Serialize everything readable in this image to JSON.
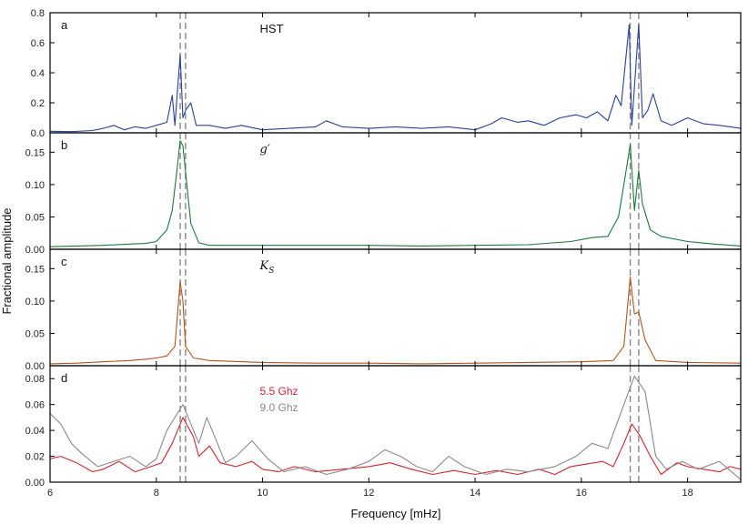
{
  "chart_data": {
    "type": "line",
    "xlabel": "Frequency [mHz]",
    "ylabel": "Fractional amplitude",
    "xlim": [
      6,
      19
    ],
    "x_ticks": [
      6,
      8,
      10,
      12,
      14,
      16,
      18
    ],
    "reference_lines_x": [
      8.45,
      8.55,
      16.92,
      17.08
    ],
    "reference_line_color": "#888888",
    "panels": [
      {
        "letter": "a",
        "label": "HST",
        "label_style": "text",
        "ylim": [
          0,
          0.8
        ],
        "y_ticks": [
          0.0,
          0.2,
          0.4,
          0.6,
          0.8
        ],
        "y_tick_labels": [
          "0.0",
          "0.2",
          "0.4",
          "0.6",
          "0.8"
        ],
        "series": [
          {
            "color": "#2a3f9c",
            "points": [
              [
                6.0,
                0.01
              ],
              [
                6.4,
                0.008
              ],
              [
                6.8,
                0.015
              ],
              [
                7.0,
                0.03
              ],
              [
                7.2,
                0.05
              ],
              [
                7.4,
                0.02
              ],
              [
                7.6,
                0.04
              ],
              [
                7.8,
                0.03
              ],
              [
                8.0,
                0.05
              ],
              [
                8.2,
                0.07
              ],
              [
                8.3,
                0.25
              ],
              [
                8.35,
                0.05
              ],
              [
                8.45,
                0.52
              ],
              [
                8.5,
                0.1
              ],
              [
                8.55,
                0.15
              ],
              [
                8.65,
                0.2
              ],
              [
                8.75,
                0.05
              ],
              [
                9.0,
                0.05
              ],
              [
                9.3,
                0.03
              ],
              [
                9.6,
                0.05
              ],
              [
                10.0,
                0.02
              ],
              [
                10.5,
                0.03
              ],
              [
                11.0,
                0.04
              ],
              [
                11.2,
                0.08
              ],
              [
                11.5,
                0.04
              ],
              [
                12.0,
                0.03
              ],
              [
                12.5,
                0.04
              ],
              [
                13.0,
                0.03
              ],
              [
                13.5,
                0.04
              ],
              [
                14.0,
                0.02
              ],
              [
                14.3,
                0.06
              ],
              [
                14.5,
                0.1
              ],
              [
                14.8,
                0.07
              ],
              [
                15.0,
                0.08
              ],
              [
                15.3,
                0.05
              ],
              [
                15.6,
                0.1
              ],
              [
                15.9,
                0.12
              ],
              [
                16.1,
                0.1
              ],
              [
                16.3,
                0.14
              ],
              [
                16.5,
                0.08
              ],
              [
                16.65,
                0.25
              ],
              [
                16.75,
                0.18
              ],
              [
                16.9,
                0.72
              ],
              [
                16.95,
                0.05
              ],
              [
                17.08,
                0.72
              ],
              [
                17.15,
                0.1
              ],
              [
                17.25,
                0.15
              ],
              [
                17.35,
                0.26
              ],
              [
                17.5,
                0.08
              ],
              [
                17.7,
                0.05
              ],
              [
                18.0,
                0.1
              ],
              [
                18.3,
                0.06
              ],
              [
                18.6,
                0.05
              ],
              [
                19.0,
                0.03
              ]
            ]
          }
        ]
      },
      {
        "letter": "b",
        "label": "g′",
        "label_style": "math",
        "ylim": [
          0,
          0.18
        ],
        "y_ticks": [
          0.0,
          0.05,
          0.1,
          0.15
        ],
        "y_tick_labels": [
          "0.00",
          "0.05",
          "0.10",
          "0.15"
        ],
        "series": [
          {
            "color": "#1a7a3a",
            "points": [
              [
                6.0,
                0.004
              ],
              [
                6.5,
                0.005
              ],
              [
                7.0,
                0.006
              ],
              [
                7.5,
                0.008
              ],
              [
                7.8,
                0.009
              ],
              [
                8.0,
                0.012
              ],
              [
                8.2,
                0.03
              ],
              [
                8.3,
                0.06
              ],
              [
                8.4,
                0.13
              ],
              [
                8.45,
                0.168
              ],
              [
                8.5,
                0.16
              ],
              [
                8.55,
                0.12
              ],
              [
                8.65,
                0.04
              ],
              [
                8.8,
                0.01
              ],
              [
                9.0,
                0.006
              ],
              [
                10.0,
                0.006
              ],
              [
                11.0,
                0.006
              ],
              [
                12.0,
                0.006
              ],
              [
                13.0,
                0.005
              ],
              [
                14.0,
                0.006
              ],
              [
                15.0,
                0.007
              ],
              [
                15.8,
                0.012
              ],
              [
                16.2,
                0.018
              ],
              [
                16.5,
                0.02
              ],
              [
                16.7,
                0.05
              ],
              [
                16.8,
                0.1
              ],
              [
                16.92,
                0.162
              ],
              [
                17.0,
                0.06
              ],
              [
                17.08,
                0.122
              ],
              [
                17.15,
                0.07
              ],
              [
                17.3,
                0.03
              ],
              [
                17.5,
                0.02
              ],
              [
                18.0,
                0.012
              ],
              [
                18.5,
                0.008
              ],
              [
                19.0,
                0.005
              ]
            ]
          }
        ]
      },
      {
        "letter": "c",
        "label": "K",
        "label_sub": "S",
        "label_style": "math",
        "ylim": [
          0,
          0.18
        ],
        "y_ticks": [
          0.0,
          0.05,
          0.1,
          0.15
        ],
        "y_tick_labels": [
          "0.00",
          "0.05",
          "0.10",
          "0.15"
        ],
        "series": [
          {
            "color": "#b5521d",
            "points": [
              [
                6.0,
                0.003
              ],
              [
                6.5,
                0.004
              ],
              [
                7.0,
                0.006
              ],
              [
                7.5,
                0.008
              ],
              [
                7.8,
                0.01
              ],
              [
                8.0,
                0.012
              ],
              [
                8.2,
                0.015
              ],
              [
                8.35,
                0.03
              ],
              [
                8.45,
                0.13
              ],
              [
                8.5,
                0.1
              ],
              [
                8.55,
                0.03
              ],
              [
                8.7,
                0.012
              ],
              [
                9.0,
                0.008
              ],
              [
                10.0,
                0.005
              ],
              [
                11.0,
                0.004
              ],
              [
                12.0,
                0.004
              ],
              [
                13.0,
                0.003
              ],
              [
                14.0,
                0.004
              ],
              [
                15.0,
                0.005
              ],
              [
                16.0,
                0.006
              ],
              [
                16.6,
                0.008
              ],
              [
                16.8,
                0.03
              ],
              [
                16.92,
                0.137
              ],
              [
                17.0,
                0.08
              ],
              [
                17.08,
                0.083
              ],
              [
                17.2,
                0.04
              ],
              [
                17.4,
                0.008
              ],
              [
                18.0,
                0.005
              ],
              [
                19.0,
                0.004
              ]
            ]
          }
        ]
      },
      {
        "letter": "d",
        "ylim": [
          0,
          0.09
        ],
        "y_ticks": [
          0.0,
          0.02,
          0.04,
          0.06,
          0.08
        ],
        "y_tick_labels": [
          "0.00",
          "0.02",
          "0.04",
          "0.06",
          "0.08"
        ],
        "legend": [
          {
            "name": "5.5 Ghz",
            "color": "#d7232e"
          },
          {
            "name": "9.0 Ghz",
            "color": "#8a8a8a"
          }
        ],
        "series": [
          {
            "name": "5.5 Ghz",
            "color": "#d7232e",
            "points": [
              [
                6.0,
                0.018
              ],
              [
                6.2,
                0.02
              ],
              [
                6.5,
                0.015
              ],
              [
                6.8,
                0.008
              ],
              [
                7.0,
                0.01
              ],
              [
                7.3,
                0.016
              ],
              [
                7.6,
                0.008
              ],
              [
                7.9,
                0.012
              ],
              [
                8.1,
                0.015
              ],
              [
                8.3,
                0.03
              ],
              [
                8.5,
                0.05
              ],
              [
                8.7,
                0.035
              ],
              [
                8.8,
                0.02
              ],
              [
                9.0,
                0.028
              ],
              [
                9.2,
                0.015
              ],
              [
                9.5,
                0.012
              ],
              [
                9.8,
                0.016
              ],
              [
                10.0,
                0.01
              ],
              [
                10.3,
                0.008
              ],
              [
                10.6,
                0.012
              ],
              [
                11.0,
                0.008
              ],
              [
                11.5,
                0.01
              ],
              [
                12.0,
                0.012
              ],
              [
                12.4,
                0.015
              ],
              [
                12.8,
                0.01
              ],
              [
                13.2,
                0.006
              ],
              [
                13.6,
                0.009
              ],
              [
                14.0,
                0.006
              ],
              [
                14.4,
                0.009
              ],
              [
                14.8,
                0.006
              ],
              [
                15.2,
                0.01
              ],
              [
                15.5,
                0.006
              ],
              [
                15.8,
                0.012
              ],
              [
                16.1,
                0.014
              ],
              [
                16.4,
                0.016
              ],
              [
                16.6,
                0.012
              ],
              [
                16.8,
                0.03
              ],
              [
                16.95,
                0.045
              ],
              [
                17.1,
                0.036
              ],
              [
                17.3,
                0.02
              ],
              [
                17.5,
                0.006
              ],
              [
                17.8,
                0.015
              ],
              [
                18.0,
                0.012
              ],
              [
                18.3,
                0.01
              ],
              [
                18.6,
                0.008
              ],
              [
                18.8,
                0.012
              ],
              [
                19.0,
                0.01
              ]
            ]
          },
          {
            "name": "9.0 Ghz",
            "color": "#8a8a8a",
            "points": [
              [
                6.0,
                0.053
              ],
              [
                6.2,
                0.045
              ],
              [
                6.4,
                0.03
              ],
              [
                6.6,
                0.022
              ],
              [
                6.9,
                0.012
              ],
              [
                7.2,
                0.016
              ],
              [
                7.5,
                0.02
              ],
              [
                7.8,
                0.012
              ],
              [
                8.0,
                0.018
              ],
              [
                8.2,
                0.04
              ],
              [
                8.5,
                0.06
              ],
              [
                8.7,
                0.04
              ],
              [
                8.8,
                0.03
              ],
              [
                8.95,
                0.05
              ],
              [
                9.1,
                0.035
              ],
              [
                9.3,
                0.015
              ],
              [
                9.5,
                0.02
              ],
              [
                9.8,
                0.032
              ],
              [
                10.1,
                0.018
              ],
              [
                10.4,
                0.008
              ],
              [
                10.8,
                0.012
              ],
              [
                11.2,
                0.006
              ],
              [
                11.6,
                0.01
              ],
              [
                12.0,
                0.016
              ],
              [
                12.3,
                0.025
              ],
              [
                12.6,
                0.02
              ],
              [
                12.9,
                0.012
              ],
              [
                13.2,
                0.008
              ],
              [
                13.5,
                0.02
              ],
              [
                13.8,
                0.012
              ],
              [
                14.2,
                0.006
              ],
              [
                14.6,
                0.01
              ],
              [
                15.0,
                0.008
              ],
              [
                15.5,
                0.012
              ],
              [
                15.9,
                0.02
              ],
              [
                16.2,
                0.03
              ],
              [
                16.5,
                0.026
              ],
              [
                16.8,
                0.06
              ],
              [
                17.0,
                0.082
              ],
              [
                17.2,
                0.07
              ],
              [
                17.4,
                0.02
              ],
              [
                17.6,
                0.01
              ],
              [
                17.9,
                0.016
              ],
              [
                18.2,
                0.01
              ],
              [
                18.6,
                0.016
              ],
              [
                19.0,
                0.002
              ]
            ]
          }
        ]
      }
    ]
  }
}
